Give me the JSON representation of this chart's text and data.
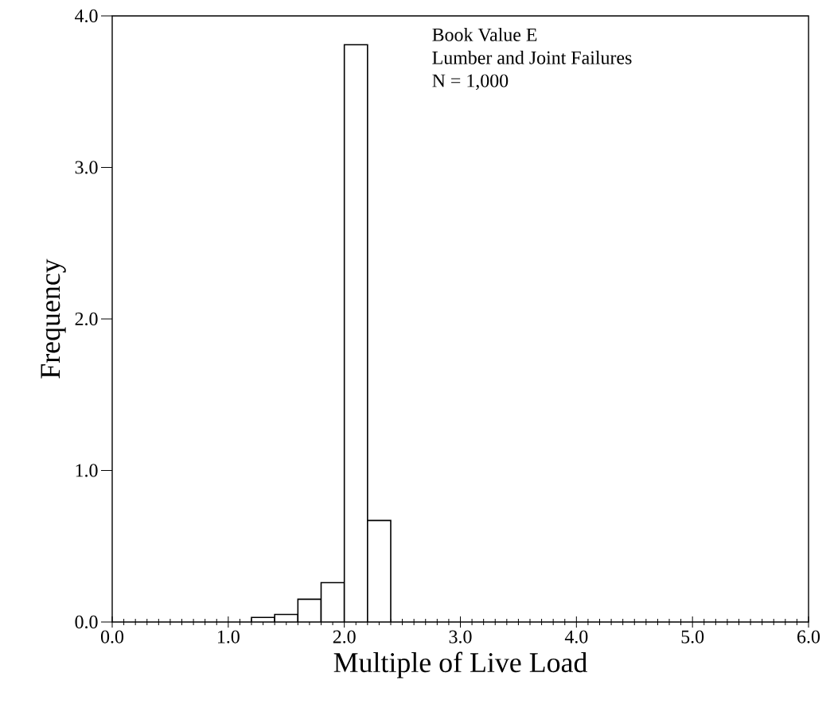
{
  "chart_data": {
    "type": "histogram",
    "xlabel": "Multiple of Live Load",
    "ylabel": "Frequency",
    "annotations": [
      "Book Value E",
      "Lumber and Joint Failures",
      "N = 1,000"
    ],
    "bins": [
      1.2,
      1.4,
      1.6,
      1.8,
      2.0,
      2.2,
      2.4
    ],
    "values": [
      0.03,
      0.05,
      0.15,
      0.26,
      3.81,
      0.67
    ],
    "color": "#000000",
    "xlim": [
      0,
      6
    ],
    "ylim": [
      0,
      4
    ],
    "xticks": [
      {
        "value": 0,
        "label": "0.0"
      },
      {
        "value": 1,
        "label": "1.0"
      },
      {
        "value": 2,
        "label": "2.0"
      },
      {
        "value": 3,
        "label": "3.0"
      },
      {
        "value": 4,
        "label": "4.0"
      },
      {
        "value": 5,
        "label": "5.0"
      },
      {
        "value": 6,
        "label": "6.0"
      }
    ],
    "yticks": [
      {
        "value": 0,
        "label": "0.0"
      },
      {
        "value": 1,
        "label": "1.0"
      },
      {
        "value": 2,
        "label": "2.0"
      },
      {
        "value": 3,
        "label": "3.0"
      },
      {
        "value": 4,
        "label": "4.0"
      }
    ],
    "tick_labels": "xy"
  }
}
